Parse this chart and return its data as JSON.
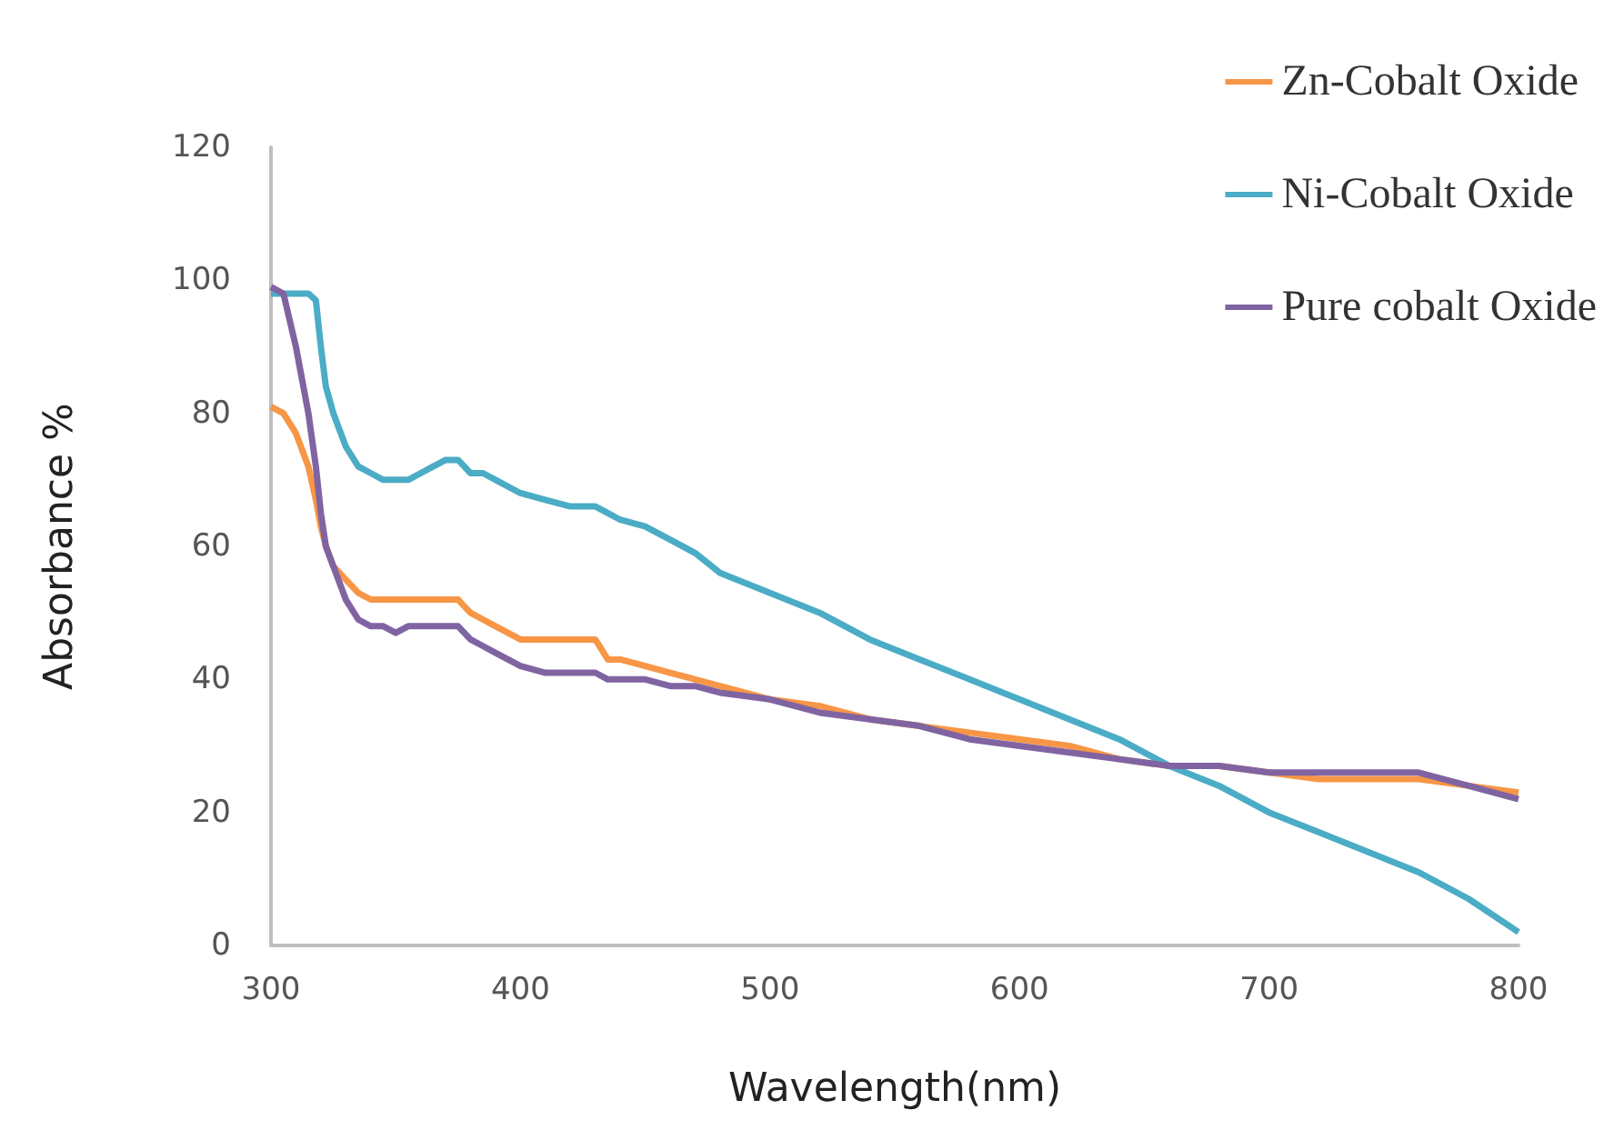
{
  "chart_data": {
    "type": "line",
    "xlabel": "Wavelength(nm)",
    "ylabel": "Absorbance %",
    "xlim": [
      300,
      800
    ],
    "xticks": [
      300,
      400,
      500,
      600,
      700,
      800
    ],
    "ylim": [
      0,
      120
    ],
    "yticks": [
      0,
      20,
      40,
      60,
      80,
      100,
      120
    ],
    "grid": false,
    "legend": "top right",
    "marker": "none",
    "line_style": "solid",
    "x": [
      300,
      305,
      310,
      315,
      318,
      320,
      322,
      325,
      330,
      335,
      340,
      345,
      350,
      355,
      360,
      365,
      370,
      375,
      380,
      385,
      390,
      400,
      410,
      420,
      430,
      435,
      440,
      450,
      460,
      470,
      480,
      500,
      520,
      540,
      560,
      580,
      600,
      620,
      640,
      660,
      680,
      700,
      720,
      740,
      760,
      780,
      800
    ],
    "series": [
      {
        "name": "Zn-Cobalt Oxide",
        "color": "#f79646",
        "values": [
          81,
          80,
          77,
          72,
          67,
          63,
          60,
          57,
          55,
          53,
          52,
          52,
          52,
          52,
          52,
          52,
          52,
          52,
          50,
          49,
          48,
          46,
          46,
          46,
          46,
          43,
          43,
          42,
          41,
          40,
          39,
          37,
          36,
          34,
          33,
          32,
          31,
          30,
          28,
          27,
          27,
          26,
          25,
          25,
          25,
          24,
          23
        ]
      },
      {
        "name": "Ni-Cobalt Oxide",
        "color": "#4bacc6",
        "values": [
          98,
          98,
          98,
          98,
          97,
          90,
          84,
          80,
          75,
          72,
          71,
          70,
          70,
          70,
          71,
          72,
          73,
          73,
          71,
          71,
          70,
          68,
          67,
          66,
          66,
          65,
          64,
          63,
          61,
          59,
          56,
          53,
          50,
          46,
          43,
          40,
          37,
          34,
          31,
          27,
          24,
          20,
          17,
          14,
          11,
          7,
          2
        ]
      },
      {
        "name": "Pure cobalt Oxide",
        "color": "#8064a2",
        "values": [
          99,
          98,
          90,
          80,
          72,
          65,
          60,
          57,
          52,
          49,
          48,
          48,
          47,
          48,
          48,
          48,
          48,
          48,
          46,
          45,
          44,
          42,
          41,
          41,
          41,
          40,
          40,
          40,
          39,
          39,
          38,
          37,
          35,
          34,
          33,
          31,
          30,
          29,
          28,
          27,
          27,
          26,
          26,
          26,
          26,
          24,
          22
        ]
      }
    ]
  }
}
